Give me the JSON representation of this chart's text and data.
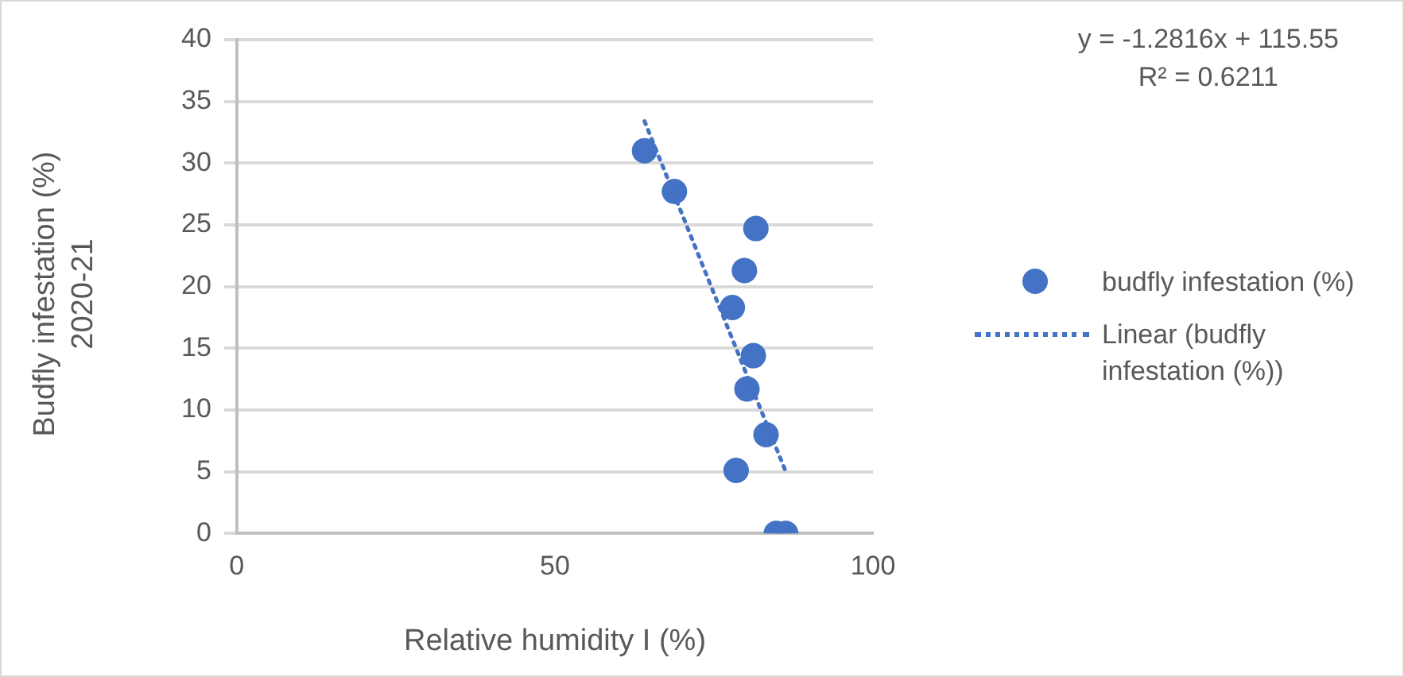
{
  "chart_data": {
    "type": "scatter",
    "xlabel": "Relative humidity I (%)",
    "ylabel": "Budfly infestation (%) 2020-21",
    "annotations": [
      "y = -1.2816x + 115.55",
      "R² = 0.6211"
    ],
    "series": [
      {
        "name": "budfly infestation (%)",
        "color": "#4472c4",
        "marker": "circle",
        "x": [
          64.1,
          68.8,
          81.6,
          79.8,
          77.9,
          81.2,
          80.2,
          83.2,
          78.5,
          84.8,
          86.3
        ],
        "values": [
          31.0,
          27.7,
          24.7,
          21.3,
          18.3,
          14.4,
          11.7,
          8.0,
          5.1,
          0,
          0
        ]
      },
      {
        "name": "Linear (budfly infestation (%))",
        "type": "line",
        "color": "#4472c4",
        "marker": "none",
        "line_style": "dotted",
        "x": [
          64.1,
          86.3
        ],
        "values": [
          33.4,
          5.0
        ]
      }
    ],
    "xlim": [
      0,
      100
    ],
    "xticks": [
      0,
      50,
      100
    ],
    "ylim": [
      0,
      40
    ],
    "yticks": [
      0,
      5,
      10,
      15,
      20,
      25,
      30,
      35,
      40
    ],
    "grid": "y",
    "legend": "right"
  }
}
